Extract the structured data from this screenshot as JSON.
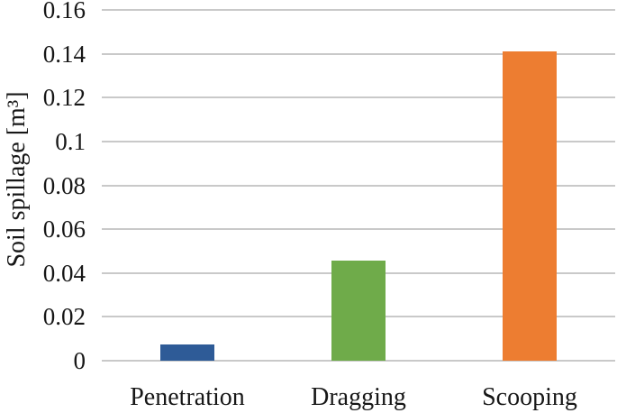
{
  "figure": {
    "background": "#ffffff",
    "text_color": "#171717",
    "gridline_color": "#c9c9c9"
  },
  "chart_data": {
    "type": "bar",
    "title": "",
    "categories": [
      "Penetration",
      "Dragging",
      "Scooping"
    ],
    "values": [
      0.0075,
      0.0455,
      0.141
    ],
    "bar_colors": [
      "#2E5B97",
      "#6FAB4A",
      "#ED7D31"
    ],
    "series_color_names": [
      "blue",
      "green",
      "orange"
    ],
    "xlabel": "",
    "ylabel": "Soil spillage [m³]",
    "ylim": [
      0,
      0.16
    ],
    "ytick_values": [
      0,
      0.02,
      0.04,
      0.06,
      0.08,
      0.1,
      0.12,
      0.14,
      0.16
    ],
    "ytick_labels": [
      "0",
      "0.02",
      "0.04",
      "0.06",
      "0.08",
      "0.1",
      "0.12",
      "0.14",
      "0.16"
    ],
    "grid": "horizontal",
    "legend": "none",
    "axis_lines": "none"
  }
}
